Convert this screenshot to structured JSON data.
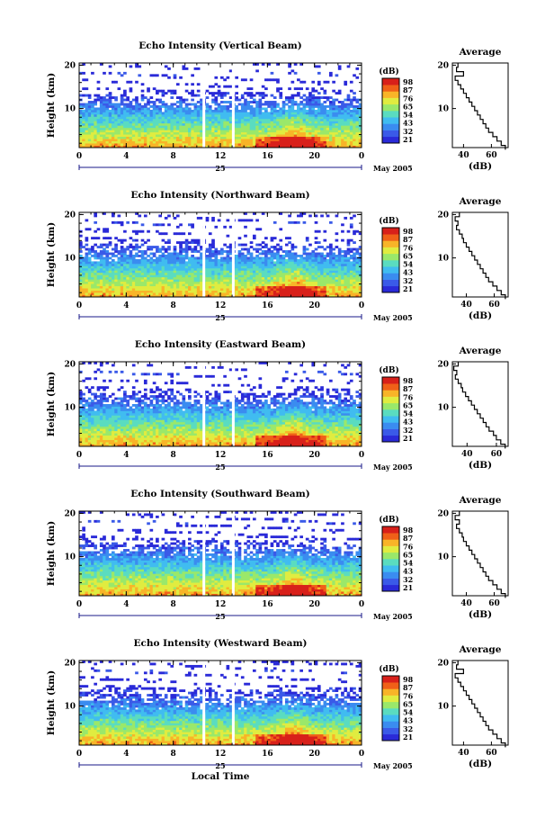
{
  "chart_data": [
    {
      "type": "heatmap",
      "title": "Echo Intensity (Vertical Beam)",
      "ylabel": "Height (km)",
      "x_ticks": [
        "0",
        "4",
        "8",
        "12",
        "16",
        "20",
        "0"
      ],
      "y_ticks": [
        "20",
        "10"
      ],
      "ylim": [
        1,
        20.5
      ],
      "date_day": "25",
      "date_month": "May 2005",
      "colorbar": {
        "unit": "(dB)",
        "ticks": [
          "98",
          "87",
          "76",
          "65",
          "54",
          "43",
          "32",
          "21"
        ]
      },
      "gaps_hours": [
        10.6,
        13.1
      ],
      "profile": {
        "title": "Average",
        "xlabel": "(dB)",
        "x_ticks": [
          "40",
          "60"
        ],
        "y_ticks": [
          "20",
          "10"
        ],
        "xlim": [
          32,
          72
        ],
        "heights": [
          1,
          2,
          3,
          4,
          5,
          6,
          7,
          8,
          9,
          10,
          11,
          12,
          13,
          14,
          15,
          16,
          17,
          18,
          19,
          20
        ],
        "values": [
          70,
          67,
          64,
          61,
          58,
          56,
          54,
          52,
          50,
          48,
          46,
          44,
          42,
          40,
          38,
          36,
          34,
          40,
          35,
          36
        ]
      }
    },
    {
      "type": "heatmap",
      "title": "Echo Intensity (Northward Beam)",
      "ylabel": "Height (km)",
      "x_ticks": [
        "0",
        "4",
        "8",
        "12",
        "16",
        "20",
        "0"
      ],
      "y_ticks": [
        "20",
        "10"
      ],
      "ylim": [
        1,
        20.5
      ],
      "date_day": "25",
      "date_month": "May 2005",
      "colorbar": {
        "unit": "(dB)",
        "ticks": [
          "98",
          "87",
          "76",
          "65",
          "54",
          "43",
          "32",
          "21"
        ]
      },
      "gaps_hours": [
        10.6,
        13.1
      ],
      "profile": {
        "title": "Average",
        "xlabel": "(dB)",
        "x_ticks": [
          "40",
          "60"
        ],
        "y_ticks": [
          "20",
          "10"
        ],
        "xlim": [
          30,
          70
        ],
        "heights": [
          1,
          2,
          3,
          4,
          5,
          6,
          7,
          8,
          9,
          10,
          11,
          12,
          13,
          14,
          15,
          16,
          17,
          18,
          19,
          20
        ],
        "values": [
          68,
          65,
          62,
          59,
          56,
          54,
          52,
          50,
          48,
          46,
          44,
          42,
          40,
          38,
          37,
          35,
          33,
          34,
          32,
          35
        ]
      }
    },
    {
      "type": "heatmap",
      "title": "Echo Intensity (Eastward Beam)",
      "ylabel": "Height (km)",
      "x_ticks": [
        "0",
        "4",
        "8",
        "12",
        "16",
        "20",
        "0"
      ],
      "y_ticks": [
        "20",
        "10"
      ],
      "ylim": [
        1,
        20.5
      ],
      "date_day": "25",
      "date_month": "May 2005",
      "colorbar": {
        "unit": "(dB)",
        "ticks": [
          "98",
          "87",
          "76",
          "65",
          "54",
          "43",
          "32",
          "21"
        ]
      },
      "gaps_hours": [
        10.6,
        13.1
      ],
      "profile": {
        "title": "Average",
        "xlabel": "(dB)",
        "x_ticks": [
          "40",
          "60"
        ],
        "y_ticks": [
          "20",
          "10"
        ],
        "xlim": [
          30,
          68
        ],
        "heights": [
          1,
          2,
          3,
          4,
          5,
          6,
          7,
          8,
          9,
          10,
          11,
          12,
          13,
          14,
          15,
          16,
          17,
          18,
          19,
          20
        ],
        "values": [
          66,
          63,
          60,
          58,
          55,
          53,
          51,
          49,
          47,
          45,
          43,
          41,
          39,
          37,
          36,
          34,
          32,
          33,
          31,
          34
        ]
      }
    },
    {
      "type": "heatmap",
      "title": "Echo Intensity (Southward Beam)",
      "ylabel": "Height (km)",
      "x_ticks": [
        "0",
        "4",
        "8",
        "12",
        "16",
        "20",
        "0"
      ],
      "y_ticks": [
        "20",
        "10"
      ],
      "ylim": [
        1,
        20.5
      ],
      "date_day": "25",
      "date_month": "May 2005",
      "colorbar": {
        "unit": "(dB)",
        "ticks": [
          "98",
          "87",
          "76",
          "65",
          "54",
          "43",
          "32",
          "21"
        ]
      },
      "gaps_hours": [
        10.6,
        13.1
      ],
      "profile": {
        "title": "Average",
        "xlabel": "(dB)",
        "x_ticks": [
          "40",
          "60"
        ],
        "y_ticks": [
          "20",
          "10"
        ],
        "xlim": [
          30,
          70
        ],
        "heights": [
          1,
          2,
          3,
          4,
          5,
          6,
          7,
          8,
          9,
          10,
          11,
          12,
          13,
          14,
          15,
          16,
          17,
          18,
          19,
          20
        ],
        "values": [
          68,
          65,
          62,
          59,
          56,
          54,
          52,
          50,
          48,
          46,
          44,
          42,
          40,
          38,
          37,
          35,
          33,
          35,
          32,
          35
        ]
      }
    },
    {
      "type": "heatmap",
      "title": "Echo Intensity (Westward Beam)",
      "ylabel": "Height (km)",
      "x_ticks": [
        "0",
        "4",
        "8",
        "12",
        "16",
        "20",
        "0"
      ],
      "y_ticks": [
        "20",
        "10"
      ],
      "ylim": [
        1,
        20.5
      ],
      "date_day": "25",
      "date_month": "May 2005",
      "xlabel": "Local Time",
      "colorbar": {
        "unit": "(dB)",
        "ticks": [
          "98",
          "87",
          "76",
          "65",
          "54",
          "43",
          "32",
          "21"
        ]
      },
      "gaps_hours": [
        10.6,
        13.1
      ],
      "profile": {
        "title": "Average",
        "xlabel": "(dB)",
        "x_ticks": [
          "40",
          "60"
        ],
        "y_ticks": [
          "20",
          "10"
        ],
        "xlim": [
          32,
          72
        ],
        "heights": [
          1,
          2,
          3,
          4,
          5,
          6,
          7,
          8,
          9,
          10,
          11,
          12,
          13,
          14,
          15,
          16,
          17,
          18,
          19,
          20
        ],
        "values": [
          70,
          67,
          64,
          61,
          58,
          56,
          54,
          52,
          50,
          48,
          46,
          44,
          42,
          40,
          38,
          36,
          34,
          40,
          35,
          36
        ]
      }
    }
  ],
  "colors": {
    "colormap": [
      "#2a2ad8",
      "#3a5ae8",
      "#3a8cf0",
      "#40bcf0",
      "#5adcc0",
      "#9ae86a",
      "#e0ec40",
      "#f8b428",
      "#f06018",
      "#d8201a"
    ]
  }
}
